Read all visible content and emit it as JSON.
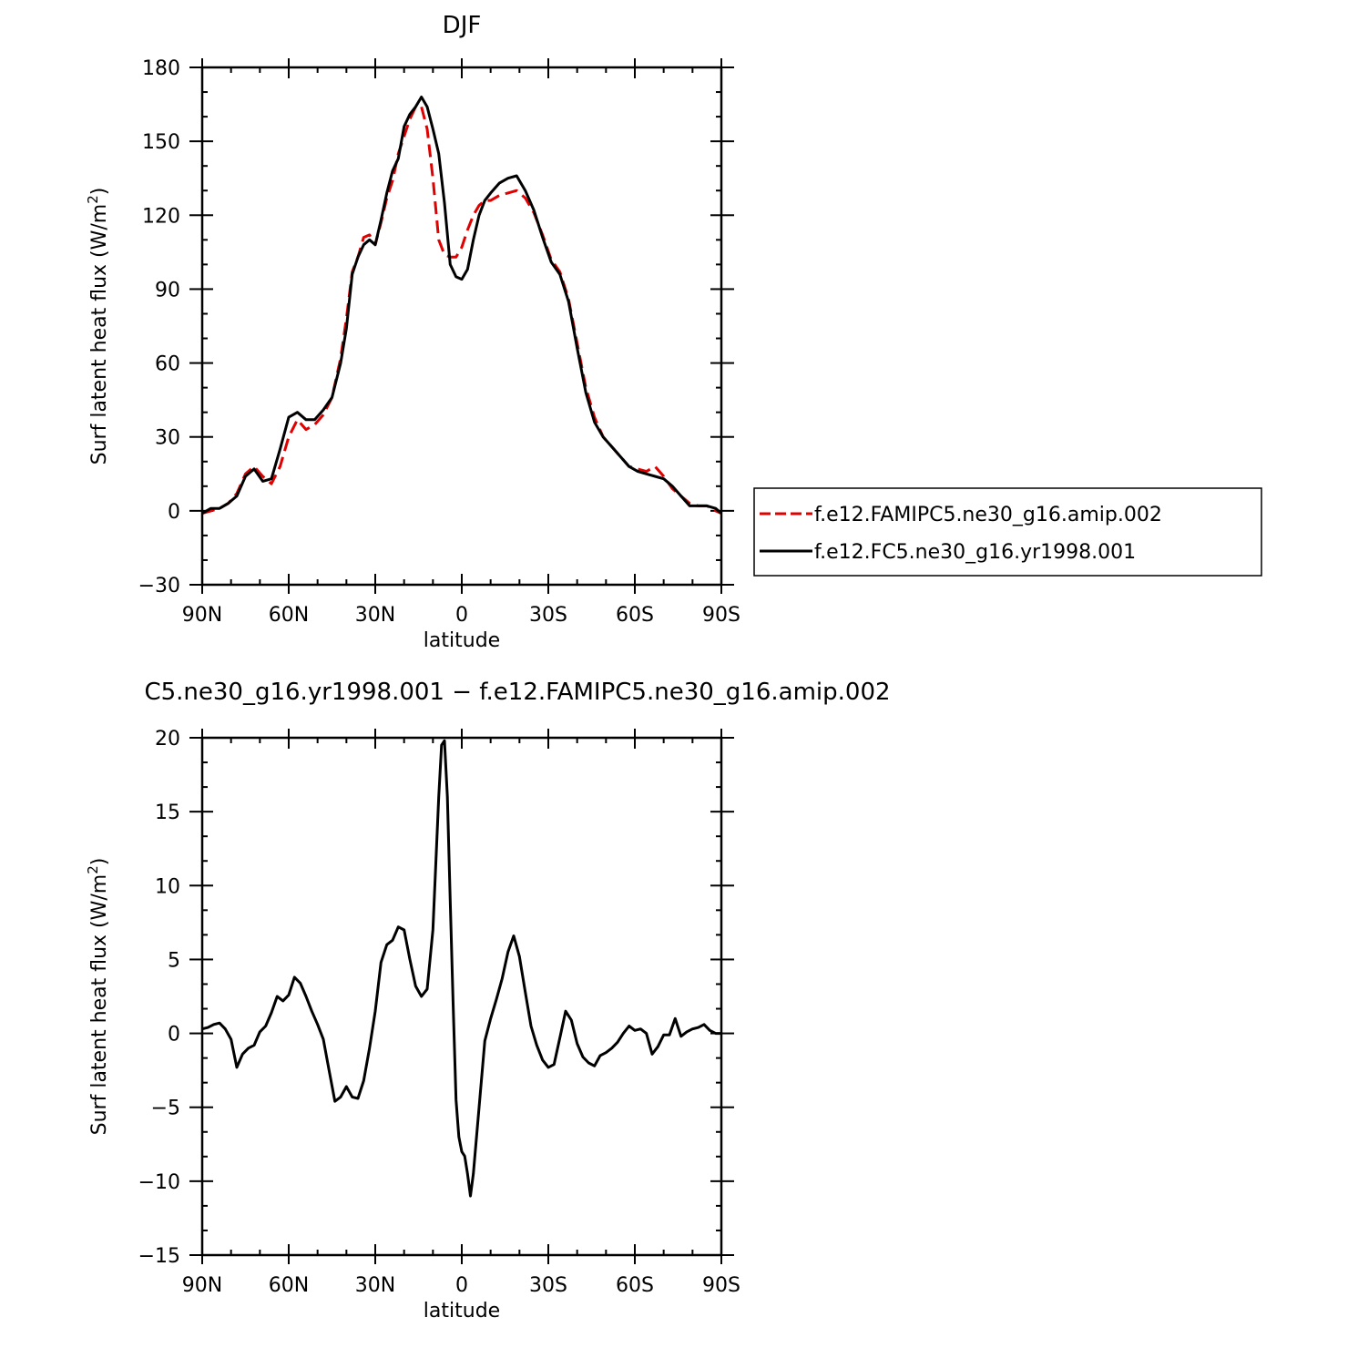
{
  "chart_data": [
    {
      "type": "line",
      "title": "DJF",
      "xlabel": "latitude",
      "ylabel": "Surf latent heat flux (W/m²)",
      "ylabel_parts": {
        "text": "Surf latent heat flux (W/m",
        "sup": "2",
        "close": ")"
      },
      "xlim": [
        -90,
        90
      ],
      "ylim": [
        -30,
        180
      ],
      "x_ticks": [
        -90,
        -60,
        -30,
        0,
        30,
        60,
        90
      ],
      "x_tick_labels": [
        "90N",
        "60N",
        "30N",
        "0",
        "30S",
        "60S",
        "90S"
      ],
      "y_ticks": [
        -30,
        0,
        30,
        60,
        90,
        120,
        150,
        180
      ],
      "y_tick_labels": [
        "−30",
        "0",
        "30",
        "60",
        "90",
        "120",
        "150",
        "180"
      ],
      "legend_position": "right",
      "series": [
        {
          "name": "f.e12.FAMIPC5.ne30_g16.amip.002",
          "color": "#e00000",
          "dash": "dashed",
          "x": [
            -90,
            -87,
            -84,
            -81,
            -78,
            -75,
            -72,
            -69,
            -66,
            -63,
            -60,
            -57,
            -54,
            -51,
            -48,
            -45,
            -42,
            -40,
            -38,
            -36,
            -34,
            -32,
            -30,
            -28,
            -26,
            -24,
            -22,
            -20,
            -18,
            -16,
            -14,
            -12,
            -10,
            -8,
            -6,
            -4,
            -2,
            0,
            2,
            4,
            6,
            8,
            10,
            13,
            16,
            19,
            22,
            25,
            28,
            31,
            34,
            37,
            40,
            43,
            46,
            49,
            52,
            55,
            58,
            61,
            64,
            67,
            70,
            73,
            76,
            79,
            82,
            85,
            88,
            90
          ],
          "y": [
            -1,
            0,
            1,
            3,
            7,
            15,
            18,
            14,
            11,
            18,
            30,
            37,
            33,
            35,
            39,
            46,
            62,
            78,
            97,
            103,
            111,
            112,
            108,
            117,
            127,
            134,
            145,
            152,
            159,
            164,
            164,
            155,
            135,
            110,
            104,
            103,
            103,
            107,
            114,
            120,
            124,
            126,
            126,
            128,
            129,
            130,
            127,
            121,
            112,
            102,
            97,
            86,
            68,
            50,
            38,
            30,
            26,
            22,
            18,
            17,
            16,
            18,
            14,
            9,
            6,
            3,
            2,
            2,
            0,
            -1
          ]
        },
        {
          "name": "f.e12.FC5.ne30_g16.yr1998.001",
          "color": "#000000",
          "dash": "solid",
          "x": [
            -90,
            -87,
            -84,
            -81,
            -78,
            -75,
            -72,
            -69,
            -66,
            -63,
            -60,
            -57,
            -54,
            -51,
            -48,
            -45,
            -42,
            -40,
            -38,
            -36,
            -34,
            -32,
            -30,
            -28,
            -26,
            -24,
            -22,
            -20,
            -18,
            -16,
            -14,
            -12,
            -10,
            -8,
            -6,
            -4,
            -2,
            0,
            2,
            4,
            6,
            8,
            10,
            13,
            16,
            19,
            22,
            25,
            28,
            31,
            34,
            37,
            40,
            43,
            46,
            49,
            52,
            55,
            58,
            61,
            64,
            67,
            70,
            73,
            76,
            79,
            82,
            85,
            88,
            90
          ],
          "y": [
            -1,
            1,
            1,
            3,
            6,
            14,
            17,
            12,
            13,
            25,
            38,
            40,
            37,
            37,
            41,
            46,
            60,
            74,
            96,
            103,
            108,
            110,
            108,
            118,
            129,
            138,
            143,
            156,
            161,
            164,
            168,
            164,
            155,
            145,
            125,
            100,
            95,
            94,
            98,
            110,
            120,
            126,
            129,
            133,
            135,
            136,
            130,
            122,
            111,
            101,
            96,
            85,
            66,
            48,
            36,
            30,
            26,
            22,
            18,
            16,
            15,
            14,
            13,
            10,
            6,
            2,
            2,
            2,
            1,
            -1
          ]
        }
      ]
    },
    {
      "type": "line",
      "title": "C5.ne30_g16.yr1998.001 − f.e12.FAMIPC5.ne30_g16.amip.002",
      "xlabel": "latitude",
      "ylabel": "Surf latent heat flux (W/m²)",
      "ylabel_parts": {
        "text": "Surf latent heat flux (W/m",
        "sup": "2",
        "close": ")"
      },
      "xlim": [
        -90,
        90
      ],
      "ylim": [
        -15,
        20
      ],
      "x_ticks": [
        -90,
        -60,
        -30,
        0,
        30,
        60,
        90
      ],
      "x_tick_labels": [
        "90N",
        "60N",
        "30N",
        "0",
        "30S",
        "60S",
        "90S"
      ],
      "y_ticks": [
        -15,
        -10,
        -5,
        0,
        5,
        10,
        15,
        20
      ],
      "y_tick_labels": [
        "−15",
        "−10",
        "−5",
        "0",
        "5",
        "10",
        "15",
        "20"
      ],
      "series": [
        {
          "color": "#000000",
          "dash": "solid",
          "x": [
            -90,
            -88,
            -86,
            -84,
            -82,
            -80,
            -78,
            -76,
            -74,
            -72,
            -70,
            -68,
            -66,
            -64,
            -62,
            -60,
            -58,
            -56,
            -54,
            -52,
            -50,
            -48,
            -46,
            -44,
            -42,
            -40,
            -38,
            -36,
            -34,
            -32,
            -30,
            -28,
            -26,
            -24,
            -22,
            -20,
            -18,
            -16,
            -14,
            -12,
            -10,
            -9,
            -8,
            -7,
            -6,
            -5,
            -4,
            -3,
            -2,
            -1,
            0,
            1,
            2,
            3,
            4,
            6,
            8,
            10,
            12,
            14,
            16,
            18,
            20,
            22,
            24,
            26,
            28,
            30,
            32,
            34,
            36,
            38,
            40,
            42,
            44,
            46,
            48,
            50,
            52,
            54,
            56,
            58,
            60,
            62,
            64,
            66,
            68,
            70,
            72,
            74,
            76,
            78,
            80,
            82,
            84,
            86,
            88,
            90
          ],
          "y": [
            0.3,
            0.4,
            0.6,
            0.7,
            0.3,
            -0.4,
            -2.3,
            -1.4,
            -1.0,
            -0.8,
            0.1,
            0.5,
            1.4,
            2.5,
            2.2,
            2.6,
            3.8,
            3.4,
            2.5,
            1.5,
            0.6,
            -0.4,
            -2.5,
            -4.6,
            -4.3,
            -3.6,
            -4.3,
            -4.4,
            -3.2,
            -1.0,
            1.5,
            4.8,
            6.0,
            6.3,
            7.2,
            7.0,
            5.0,
            3.2,
            2.5,
            3.0,
            7.0,
            11.5,
            16.0,
            19.5,
            19.8,
            16.0,
            9.0,
            2.0,
            -4.5,
            -7.0,
            -8.0,
            -8.3,
            -9.5,
            -11.0,
            -9.5,
            -5.0,
            -0.5,
            1.0,
            2.3,
            3.7,
            5.5,
            6.6,
            5.2,
            2.8,
            0.5,
            -0.8,
            -1.8,
            -2.3,
            -2.1,
            -0.3,
            1.5,
            0.9,
            -0.7,
            -1.6,
            -2.0,
            -2.2,
            -1.5,
            -1.3,
            -1.0,
            -0.6,
            0.0,
            0.5,
            0.2,
            0.3,
            0.0,
            -1.4,
            -0.9,
            -0.1,
            -0.1,
            1.0,
            -0.2,
            0.1,
            0.3,
            0.4,
            0.6,
            0.2,
            0.0,
            0.0
          ]
        }
      ]
    }
  ]
}
